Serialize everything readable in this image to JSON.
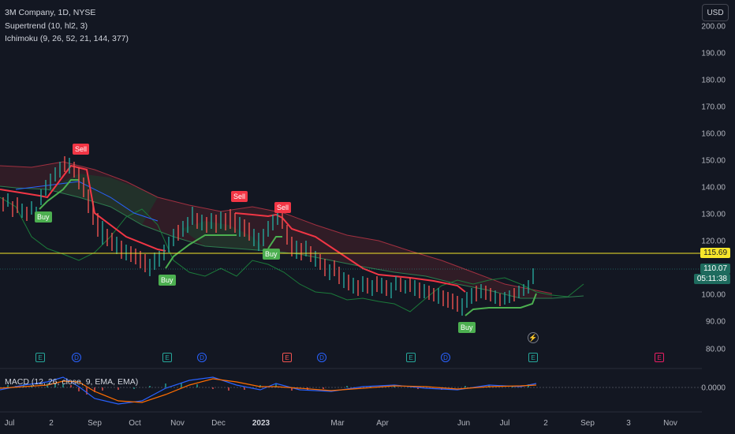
{
  "legend": {
    "symbol": "3M Company, 1D, NYSE",
    "indicator1": "Supertrend (10, hl2, 3)",
    "indicator2": "Ichimoku (9, 26, 52, 21, 144, 377)",
    "macd": "MACD (12, 26, close, 9, EMA, EMA)"
  },
  "currency": "USD",
  "price_axis": [
    "200.00",
    "190.00",
    "180.00",
    "170.00",
    "160.00",
    "150.00",
    "140.00",
    "130.00",
    "120.00",
    "100.00",
    "90.00",
    "80.00"
  ],
  "macd_axis": "0.0000",
  "price_labels": {
    "level": "115.69",
    "last": "110.07",
    "countdown": "05:11:38"
  },
  "time_axis": [
    "Jul",
    "2",
    "Sep",
    "Oct",
    "Nov",
    "Dec",
    "2023",
    "Mar",
    "Apr",
    "Jun",
    "Jul",
    "2",
    "Sep",
    "3",
    "Nov"
  ],
  "signals": [
    {
      "label": "Sell",
      "kind": "sell"
    },
    {
      "label": "Buy",
      "kind": "buy"
    },
    {
      "label": "Sell",
      "kind": "sell"
    },
    {
      "label": "Sell",
      "kind": "sell"
    },
    {
      "label": "Buy",
      "kind": "buy"
    },
    {
      "label": "Buy",
      "kind": "buy"
    },
    {
      "label": "Buy",
      "kind": "buy"
    }
  ],
  "events": [
    "E",
    "D",
    "E",
    "D",
    "E",
    "D",
    "E",
    "D",
    "E",
    "E"
  ],
  "colors": {
    "background": "#131722",
    "up": "#26a69a",
    "down": "#ef5350",
    "level": "#f5e52a",
    "buy": "#4caf50",
    "sell": "#f23645",
    "macd": "#2962ff",
    "signal": "#ff6d00"
  }
}
